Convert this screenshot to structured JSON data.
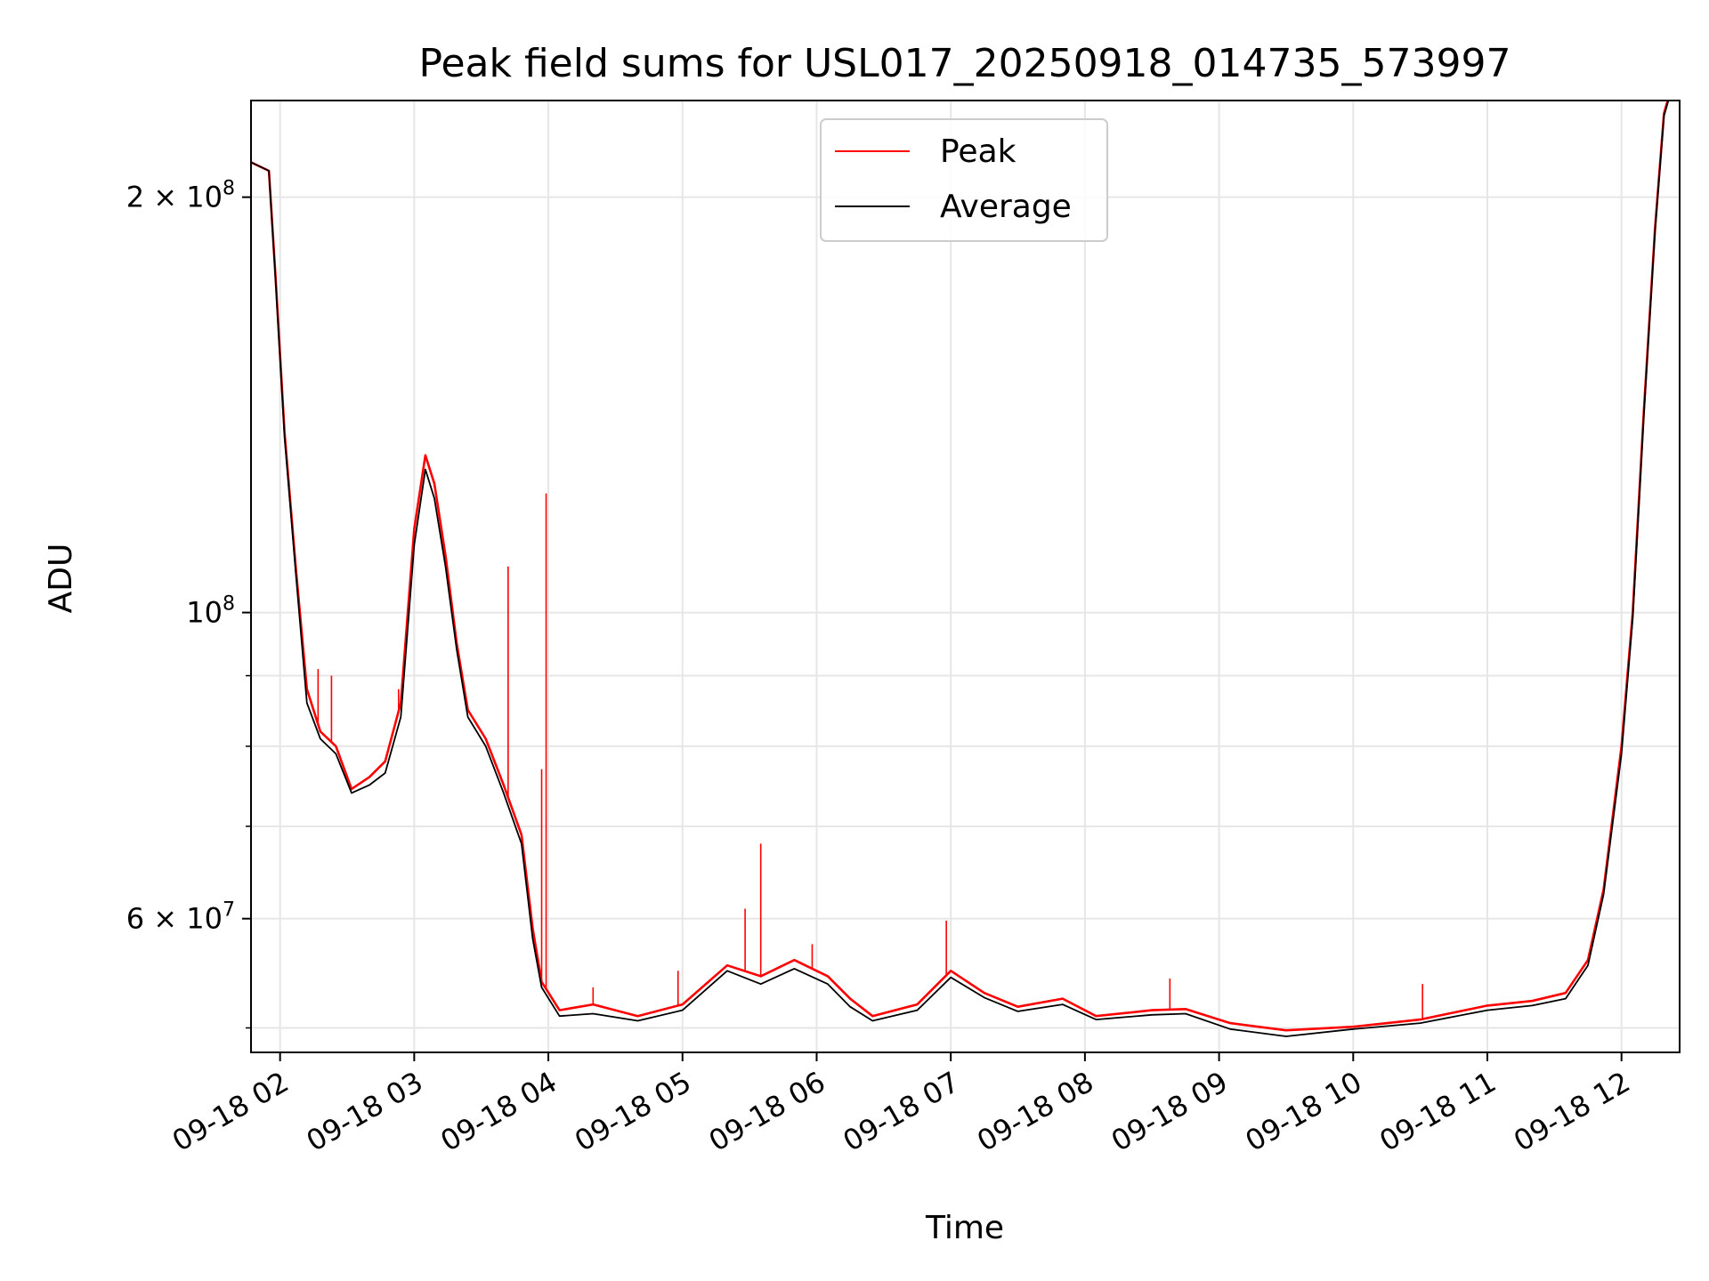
{
  "chart_data": {
    "type": "line",
    "title": "Peak field sums for USL017_20250918_014735_573997",
    "xlabel": "Time",
    "ylabel": "ADU",
    "yscale": "log",
    "grid": true,
    "legend_position": "upper center",
    "xlim": [
      "2025-09-18 01:47",
      "2025-09-18 12:26"
    ],
    "ylim": [
      48000000,
      235000000
    ],
    "x_ticks": [
      {
        "t": "2025-09-18 02:00",
        "label": "09-18 02"
      },
      {
        "t": "2025-09-18 03:00",
        "label": "09-18 03"
      },
      {
        "t": "2025-09-18 04:00",
        "label": "09-18 04"
      },
      {
        "t": "2025-09-18 05:00",
        "label": "09-18 05"
      },
      {
        "t": "2025-09-18 06:00",
        "label": "09-18 06"
      },
      {
        "t": "2025-09-18 07:00",
        "label": "09-18 07"
      },
      {
        "t": "2025-09-18 08:00",
        "label": "09-18 08"
      },
      {
        "t": "2025-09-18 09:00",
        "label": "09-18 09"
      },
      {
        "t": "2025-09-18 10:00",
        "label": "09-18 10"
      },
      {
        "t": "2025-09-18 11:00",
        "label": "09-18 11"
      },
      {
        "t": "2025-09-18 12:00",
        "label": "09-18 12"
      }
    ],
    "y_ticks_major": [
      {
        "value": 60000000,
        "label": "6 × 10⁷",
        "base": "6 × 10",
        "exp": "7"
      },
      {
        "value": 100000000,
        "label": "10⁸",
        "base": "10",
        "exp": "8"
      },
      {
        "value": 200000000,
        "label": "2 × 10⁸",
        "base": "2 × 10",
        "exp": "8"
      }
    ],
    "y_ticks_minor": [
      50000000,
      70000000,
      80000000,
      90000000
    ],
    "series": [
      {
        "name": "Peak",
        "color": "#ff0000",
        "points": [
          [
            "2025-09-18 01:47",
            212000000
          ],
          [
            "2025-09-18 01:55",
            209000000
          ],
          [
            "2025-09-18 01:58",
            175000000
          ],
          [
            "2025-09-18 02:02",
            135000000
          ],
          [
            "2025-09-18 02:07",
            108000000
          ],
          [
            "2025-09-18 02:12",
            88000000
          ],
          [
            "2025-09-18 02:18",
            82000000
          ],
          [
            "2025-09-18 02:25",
            80000000
          ],
          [
            "2025-09-18 02:32",
            74500000
          ],
          [
            "2025-09-18 02:40",
            76000000
          ],
          [
            "2025-09-18 02:47",
            78000000
          ],
          [
            "2025-09-18 02:54",
            86000000
          ],
          [
            "2025-09-18 03:00",
            115000000
          ],
          [
            "2025-09-18 03:05",
            130000000
          ],
          [
            "2025-09-18 03:09",
            124000000
          ],
          [
            "2025-09-18 03:14",
            110000000
          ],
          [
            "2025-09-18 03:19",
            95000000
          ],
          [
            "2025-09-18 03:24",
            85000000
          ],
          [
            "2025-09-18 03:32",
            81000000
          ],
          [
            "2025-09-18 03:40",
            75000000
          ],
          [
            "2025-09-18 03:48",
            69000000
          ],
          [
            "2025-09-18 03:53",
            59000000
          ],
          [
            "2025-09-18 03:57",
            54000000
          ],
          [
            "2025-09-18 04:05",
            51500000
          ],
          [
            "2025-09-18 04:20",
            52000000
          ],
          [
            "2025-09-18 04:40",
            51000000
          ],
          [
            "2025-09-18 05:00",
            52000000
          ],
          [
            "2025-09-18 05:20",
            55500000
          ],
          [
            "2025-09-18 05:35",
            54500000
          ],
          [
            "2025-09-18 05:50",
            56000000
          ],
          [
            "2025-09-18 06:05",
            54500000
          ],
          [
            "2025-09-18 06:15",
            52500000
          ],
          [
            "2025-09-18 06:25",
            51000000
          ],
          [
            "2025-09-18 06:45",
            52000000
          ],
          [
            "2025-09-18 07:00",
            55000000
          ],
          [
            "2025-09-18 07:15",
            53000000
          ],
          [
            "2025-09-18 07:30",
            51800000
          ],
          [
            "2025-09-18 07:50",
            52500000
          ],
          [
            "2025-09-18 08:05",
            51000000
          ],
          [
            "2025-09-18 08:30",
            51500000
          ],
          [
            "2025-09-18 08:45",
            51600000
          ],
          [
            "2025-09-18 09:05",
            50400000
          ],
          [
            "2025-09-18 09:30",
            49800000
          ],
          [
            "2025-09-18 10:00",
            50100000
          ],
          [
            "2025-09-18 10:30",
            50700000
          ],
          [
            "2025-09-18 11:00",
            51900000
          ],
          [
            "2025-09-18 11:20",
            52300000
          ],
          [
            "2025-09-18 11:35",
            53000000
          ],
          [
            "2025-09-18 11:45",
            56000000
          ],
          [
            "2025-09-18 11:52",
            63000000
          ],
          [
            "2025-09-18 12:00",
            80000000
          ],
          [
            "2025-09-18 12:05",
            100000000
          ],
          [
            "2025-09-18 12:10",
            140000000
          ],
          [
            "2025-09-18 12:15",
            190000000
          ],
          [
            "2025-09-18 12:19",
            230000000
          ],
          [
            "2025-09-18 12:21",
            236000000
          ]
        ],
        "spikes": [
          [
            "2025-09-18 03:42",
            108000000
          ],
          [
            "2025-09-18 03:57",
            77000000
          ],
          [
            "2025-09-18 03:59",
            122000000
          ],
          [
            "2025-09-18 02:17",
            91000000
          ],
          [
            "2025-09-18 02:23",
            90000000
          ],
          [
            "2025-09-18 02:53",
            88000000
          ],
          [
            "2025-09-18 05:28",
            61000000
          ],
          [
            "2025-09-18 05:35",
            68000000
          ],
          [
            "2025-09-18 05:58",
            57500000
          ],
          [
            "2025-09-18 06:58",
            59800000
          ],
          [
            "2025-09-18 08:38",
            54300000
          ],
          [
            "2025-09-18 10:31",
            53800000
          ],
          [
            "2025-09-18 04:58",
            55000000
          ],
          [
            "2025-09-18 04:20",
            53500000
          ]
        ]
      },
      {
        "name": "Average",
        "color": "#000000",
        "points": [
          [
            "2025-09-18 01:47",
            212000000
          ],
          [
            "2025-09-18 01:55",
            209000000
          ],
          [
            "2025-09-18 01:58",
            174000000
          ],
          [
            "2025-09-18 02:02",
            134000000
          ],
          [
            "2025-09-18 02:07",
            107000000
          ],
          [
            "2025-09-18 02:12",
            86000000
          ],
          [
            "2025-09-18 02:18",
            81000000
          ],
          [
            "2025-09-18 02:25",
            79000000
          ],
          [
            "2025-09-18 02:32",
            74000000
          ],
          [
            "2025-09-18 02:40",
            75000000
          ],
          [
            "2025-09-18 02:47",
            76500000
          ],
          [
            "2025-09-18 02:54",
            84000000
          ],
          [
            "2025-09-18 03:00",
            112000000
          ],
          [
            "2025-09-18 03:05",
            127000000
          ],
          [
            "2025-09-18 03:09",
            121000000
          ],
          [
            "2025-09-18 03:14",
            108000000
          ],
          [
            "2025-09-18 03:19",
            94000000
          ],
          [
            "2025-09-18 03:24",
            84000000
          ],
          [
            "2025-09-18 03:32",
            80000000
          ],
          [
            "2025-09-18 03:40",
            74000000
          ],
          [
            "2025-09-18 03:48",
            68000000
          ],
          [
            "2025-09-18 03:53",
            58000000
          ],
          [
            "2025-09-18 03:57",
            53500000
          ],
          [
            "2025-09-18 04:05",
            51000000
          ],
          [
            "2025-09-18 04:20",
            51200000
          ],
          [
            "2025-09-18 04:40",
            50600000
          ],
          [
            "2025-09-18 05:00",
            51500000
          ],
          [
            "2025-09-18 05:20",
            55000000
          ],
          [
            "2025-09-18 05:35",
            53800000
          ],
          [
            "2025-09-18 05:50",
            55200000
          ],
          [
            "2025-09-18 06:05",
            53800000
          ],
          [
            "2025-09-18 06:15",
            51800000
          ],
          [
            "2025-09-18 06:25",
            50600000
          ],
          [
            "2025-09-18 06:45",
            51500000
          ],
          [
            "2025-09-18 07:00",
            54400000
          ],
          [
            "2025-09-18 07:15",
            52600000
          ],
          [
            "2025-09-18 07:30",
            51400000
          ],
          [
            "2025-09-18 07:50",
            52000000
          ],
          [
            "2025-09-18 08:05",
            50700000
          ],
          [
            "2025-09-18 08:30",
            51100000
          ],
          [
            "2025-09-18 08:45",
            51200000
          ],
          [
            "2025-09-18 09:05",
            49900000
          ],
          [
            "2025-09-18 09:30",
            49300000
          ],
          [
            "2025-09-18 10:00",
            49900000
          ],
          [
            "2025-09-18 10:30",
            50400000
          ],
          [
            "2025-09-18 11:00",
            51500000
          ],
          [
            "2025-09-18 11:20",
            51900000
          ],
          [
            "2025-09-18 11:35",
            52500000
          ],
          [
            "2025-09-18 11:45",
            55500000
          ],
          [
            "2025-09-18 11:52",
            62500000
          ],
          [
            "2025-09-18 12:00",
            79000000
          ],
          [
            "2025-09-18 12:05",
            99000000
          ],
          [
            "2025-09-18 12:10",
            139000000
          ],
          [
            "2025-09-18 12:15",
            189000000
          ],
          [
            "2025-09-18 12:19",
            229000000
          ],
          [
            "2025-09-18 12:21",
            235000000
          ]
        ]
      }
    ]
  }
}
